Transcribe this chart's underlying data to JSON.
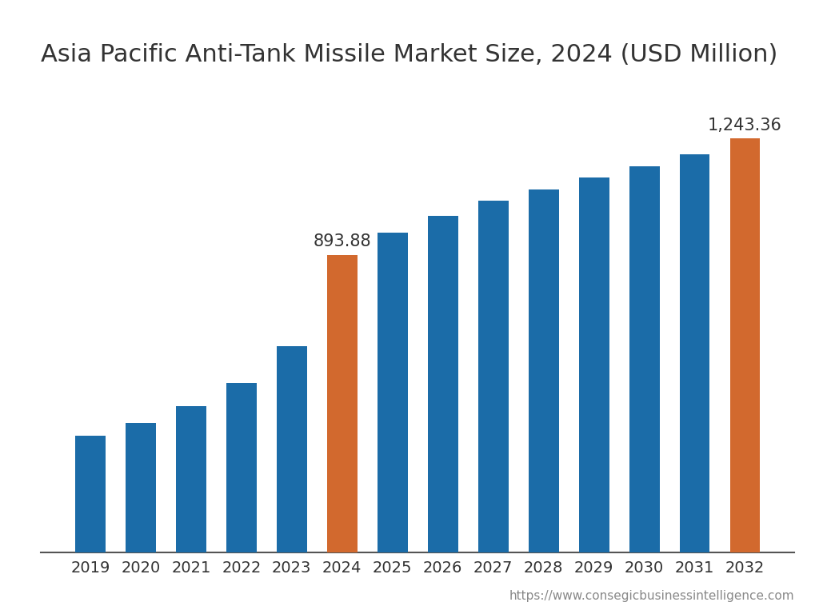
{
  "title": "Asia Pacific Anti-Tank Missile Market Size, 2024 (USD Million)",
  "years": [
    2019,
    2020,
    2021,
    2022,
    2023,
    2024,
    2025,
    2026,
    2027,
    2028,
    2029,
    2030,
    2031,
    2032
  ],
  "values": [
    350,
    390,
    440,
    510,
    620,
    893.88,
    960,
    1010,
    1055,
    1090,
    1125,
    1158,
    1195,
    1243.36
  ],
  "bar_colors": [
    "#1b6ca8",
    "#1b6ca8",
    "#1b6ca8",
    "#1b6ca8",
    "#1b6ca8",
    "#d2692e",
    "#1b6ca8",
    "#1b6ca8",
    "#1b6ca8",
    "#1b6ca8",
    "#1b6ca8",
    "#1b6ca8",
    "#1b6ca8",
    "#d2692e"
  ],
  "labeled_bars": [
    5,
    13
  ],
  "labeled_values": [
    "893.88",
    "1,243.36"
  ],
  "background_color": "#ffffff",
  "text_color": "#333333",
  "title_fontsize": 22,
  "tick_fontsize": 14,
  "annotation_fontsize": 15,
  "url_text": "https://www.consegicbusinessintelligence.com",
  "url_fontsize": 11,
  "ylim": [
    0,
    1400
  ]
}
